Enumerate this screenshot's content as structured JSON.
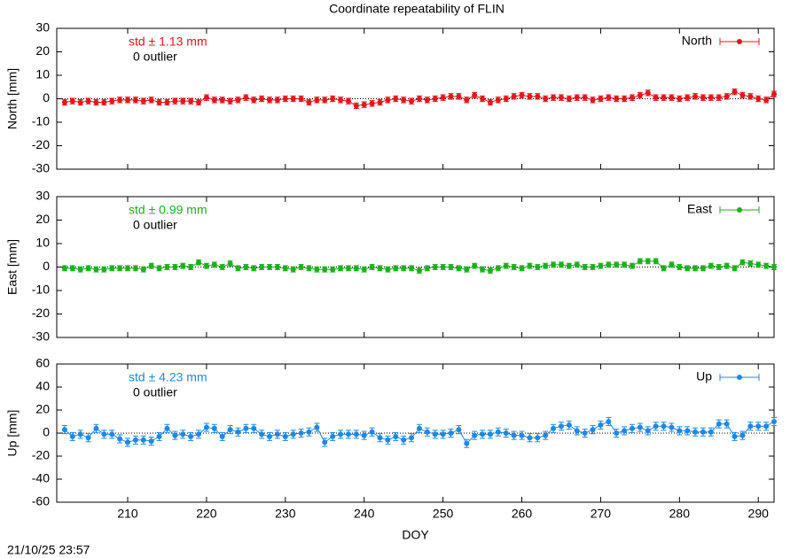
{
  "chart_data": [
    {
      "type": "line",
      "title": "Coordinate repeatability of FLIN",
      "ylabel": "North [mm]",
      "annotations": [
        "std ± 1.13 mm",
        "0 outlier"
      ],
      "xlim": [
        201,
        292
      ],
      "xticks": [
        210,
        220,
        230,
        240,
        250,
        260,
        270,
        280,
        290
      ],
      "ylim": [
        -30,
        30
      ],
      "yticks": [
        -30,
        -20,
        -10,
        0,
        10,
        20,
        30
      ],
      "reference_line": 0,
      "legend": "top-right",
      "x": [
        202,
        203,
        204,
        205,
        206,
        207,
        208,
        209,
        210,
        211,
        212,
        213,
        214,
        215,
        216,
        217,
        218,
        219,
        220,
        221,
        222,
        223,
        224,
        225,
        226,
        227,
        228,
        229,
        230,
        231,
        232,
        233,
        234,
        235,
        236,
        237,
        238,
        239,
        240,
        241,
        242,
        243,
        244,
        245,
        246,
        247,
        248,
        249,
        250,
        251,
        252,
        253,
        254,
        255,
        256,
        257,
        258,
        259,
        260,
        261,
        262,
        263,
        264,
        265,
        266,
        267,
        268,
        269,
        270,
        271,
        272,
        273,
        274,
        275,
        276,
        277,
        278,
        279,
        280,
        281,
        282,
        283,
        284,
        285,
        286,
        287,
        288,
        289,
        290,
        291,
        292
      ],
      "series": [
        {
          "name": "North",
          "color": "#e8141b",
          "error": 1.2,
          "values": [
            -1.5,
            -1,
            -1.5,
            -1,
            -1.5,
            -1.5,
            -1,
            -0.5,
            -0.5,
            -0.5,
            -1,
            -0.5,
            -1.5,
            -1.5,
            -1,
            -1,
            -1,
            -1.5,
            0.5,
            -0.5,
            -0.5,
            -1,
            -0.5,
            0.5,
            -0.5,
            0,
            -0.5,
            -0.5,
            0,
            0,
            0,
            -1.5,
            -0.5,
            -0.5,
            0,
            -0.5,
            -1,
            -3,
            -2.5,
            -2,
            -1.5,
            -0.5,
            0,
            -0.5,
            -1,
            0,
            -0.5,
            0,
            0.5,
            1,
            1,
            -0.5,
            1.5,
            0,
            -1.5,
            -0.5,
            0,
            1,
            1.5,
            1,
            1,
            0,
            0.5,
            0.5,
            0,
            0.5,
            0.5,
            -0.5,
            0,
            0.5,
            0,
            0,
            0.5,
            1.5,
            2.5,
            0.5,
            0.5,
            0.5,
            0,
            0.5,
            1,
            0.5,
            0.5,
            0.5,
            1,
            3,
            1.5,
            1,
            0,
            -0.5,
            2
          ]
        }
      ]
    },
    {
      "type": "line",
      "ylabel": "East [mm]",
      "annotations": [
        "std ± 0.99 mm",
        "0 outlier"
      ],
      "xlim": [
        201,
        292
      ],
      "xticks": [
        210,
        220,
        230,
        240,
        250,
        260,
        270,
        280,
        290
      ],
      "ylim": [
        -30,
        30
      ],
      "yticks": [
        -30,
        -20,
        -10,
        0,
        10,
        20,
        30
      ],
      "reference_line": 0,
      "legend": "top-right",
      "x": [
        202,
        203,
        204,
        205,
        206,
        207,
        208,
        209,
        210,
        211,
        212,
        213,
        214,
        215,
        216,
        217,
        218,
        219,
        220,
        221,
        222,
        223,
        224,
        225,
        226,
        227,
        228,
        229,
        230,
        231,
        232,
        233,
        234,
        235,
        236,
        237,
        238,
        239,
        240,
        241,
        242,
        243,
        244,
        245,
        246,
        247,
        248,
        249,
        250,
        251,
        252,
        253,
        254,
        255,
        256,
        257,
        258,
        259,
        260,
        261,
        262,
        263,
        264,
        265,
        266,
        267,
        268,
        269,
        270,
        271,
        272,
        273,
        274,
        275,
        276,
        277,
        278,
        279,
        280,
        281,
        282,
        283,
        284,
        285,
        286,
        287,
        288,
        289,
        290,
        291,
        292
      ],
      "series": [
        {
          "name": "East",
          "color": "#1cb01c",
          "error": 1.1,
          "values": [
            -0.5,
            -0.5,
            -1,
            -0.5,
            -1,
            -1,
            -0.5,
            -0.5,
            -0.5,
            -0.5,
            -1,
            0.5,
            -0.5,
            0,
            0,
            0.5,
            0,
            2,
            0.5,
            1,
            0,
            1.5,
            -0.5,
            0,
            -0.5,
            0,
            0,
            0,
            -0.5,
            -1,
            0,
            -0.5,
            -1,
            -1,
            -1,
            -0.5,
            -0.5,
            -0.5,
            -1,
            0,
            -0.5,
            -1,
            -0.5,
            -0.5,
            -0.5,
            -1.5,
            -0.5,
            0,
            0,
            0,
            -0.5,
            -1,
            0.5,
            -1,
            -1.5,
            -0.5,
            0.5,
            0,
            -0.5,
            0.5,
            0,
            0.5,
            1,
            1,
            0.5,
            1,
            0,
            0,
            0.5,
            1,
            1,
            1,
            0.5,
            2.5,
            2.5,
            2.5,
            -0.5,
            1,
            0,
            -0.5,
            -0.5,
            -0.5,
            0.5,
            0,
            0.5,
            -0.5,
            2,
            1.5,
            1,
            0.5,
            0
          ]
        }
      ]
    },
    {
      "type": "line",
      "ylabel": "Up [mm]",
      "xlabel": "DOY",
      "annotations": [
        "std ± 4.23 mm",
        "0 outlier"
      ],
      "xlim": [
        201,
        292
      ],
      "xticks": [
        210,
        220,
        230,
        240,
        250,
        260,
        270,
        280,
        290
      ],
      "ylim": [
        -60,
        60
      ],
      "yticks": [
        -60,
        -40,
        -20,
        0,
        20,
        40,
        60
      ],
      "reference_line": 0,
      "legend": "top-right",
      "x": [
        202,
        203,
        204,
        205,
        206,
        207,
        208,
        209,
        210,
        211,
        212,
        213,
        214,
        215,
        216,
        217,
        218,
        219,
        220,
        221,
        222,
        223,
        224,
        225,
        226,
        227,
        228,
        229,
        230,
        231,
        232,
        233,
        234,
        235,
        236,
        237,
        238,
        239,
        240,
        241,
        242,
        243,
        244,
        245,
        246,
        247,
        248,
        249,
        250,
        251,
        252,
        253,
        254,
        255,
        256,
        257,
        258,
        259,
        260,
        261,
        262,
        263,
        264,
        265,
        266,
        267,
        268,
        269,
        270,
        271,
        272,
        273,
        274,
        275,
        276,
        277,
        278,
        279,
        280,
        281,
        282,
        283,
        284,
        285,
        286,
        287,
        288,
        289,
        290,
        291,
        292
      ],
      "series": [
        {
          "name": "Up",
          "color": "#1e88e5",
          "error": 3.5,
          "values": [
            3,
            -3,
            -1,
            -4,
            4,
            -1,
            -1,
            -5,
            -8,
            -6,
            -6,
            -7,
            -3,
            4,
            -2,
            -1,
            -3,
            -1,
            5,
            4,
            -3,
            3,
            1,
            4,
            4,
            -1,
            -3,
            -1,
            -3,
            -1,
            0,
            1,
            5,
            -8,
            -3,
            -1,
            -1,
            -1,
            -2,
            1,
            -4,
            -6,
            -3,
            -6,
            -4,
            4,
            1,
            -1,
            -1,
            0,
            3,
            -9,
            -2,
            -1,
            -1,
            1,
            0,
            -2,
            -2,
            -4,
            -4,
            -2,
            4,
            6,
            7,
            2,
            0,
            3,
            7,
            10,
            0,
            2,
            4,
            5,
            2,
            6,
            6,
            5,
            2,
            2,
            1,
            1,
            1,
            8,
            8,
            -3,
            -2,
            6,
            6,
            6,
            10
          ]
        }
      ]
    }
  ],
  "timestamp": "21/10/25 23:57"
}
